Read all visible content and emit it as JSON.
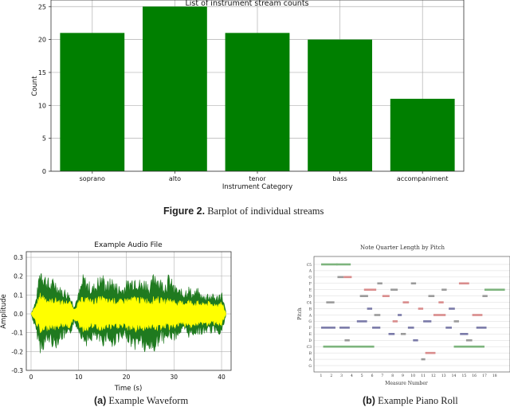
{
  "figure2_caption": {
    "label": "Figure 2.",
    "text": "Barplot of individual streams"
  },
  "caption_a": {
    "label": "(a)",
    "text": "Example Waveform"
  },
  "caption_b": {
    "label": "(b)",
    "text": "Example Piano Roll"
  },
  "colors": {
    "bar": "#007f00",
    "wave_outer": "#1f7a1f",
    "wave_inner": "#ffff00",
    "grid": "#b0b0b0"
  },
  "chart_data": [
    {
      "type": "bar",
      "title": "List of instrument stream counts",
      "xlabel": "Instrument Category",
      "ylabel": "Count",
      "categories": [
        "soprano",
        "alto",
        "tenor",
        "bass",
        "accompaniment"
      ],
      "values": [
        21,
        25,
        21,
        20,
        11
      ],
      "ylim": [
        0,
        26
      ],
      "yticks": [
        0,
        5,
        10,
        15,
        20,
        25
      ],
      "grid": true
    },
    {
      "type": "area",
      "title": "Example Audio File",
      "xlabel": "Time (s)",
      "ylabel": "Amplitude",
      "xlim": [
        -1,
        42
      ],
      "ylim": [
        -0.3,
        0.33
      ],
      "xticks": [
        0,
        10,
        20,
        30,
        40
      ],
      "yticks": [
        "0.3",
        "0.2",
        "0.1",
        "0.0",
        "-0.1",
        "-0.2",
        "-0.3"
      ],
      "grid": true,
      "series": [
        {
          "envelope_time": [
            0,
            1,
            2,
            3,
            4,
            5,
            6,
            7,
            8,
            9,
            10,
            11,
            12,
            13,
            14,
            15,
            16,
            17,
            18,
            19,
            20,
            21,
            22,
            23,
            24,
            25,
            26,
            27,
            28,
            29,
            30,
            31,
            32,
            33,
            34,
            35,
            36,
            37,
            38,
            39,
            40,
            41
          ],
          "outer_upper": [
            0.0,
            0.08,
            0.28,
            0.22,
            0.18,
            0.2,
            0.15,
            0.14,
            0.12,
            0.05,
            0.12,
            0.22,
            0.18,
            0.16,
            0.2,
            0.22,
            0.18,
            0.2,
            0.17,
            0.15,
            0.18,
            0.2,
            0.23,
            0.18,
            0.2,
            0.16,
            0.25,
            0.2,
            0.18,
            0.22,
            0.16,
            0.14,
            0.13,
            0.16,
            0.12,
            0.14,
            0.1,
            0.12,
            0.11,
            0.1,
            0.13,
            0.0
          ],
          "outer_lower": [
            0.0,
            -0.1,
            -0.22,
            -0.18,
            -0.16,
            -0.2,
            -0.15,
            -0.14,
            -0.14,
            -0.05,
            -0.1,
            -0.16,
            -0.18,
            -0.14,
            -0.16,
            -0.18,
            -0.14,
            -0.2,
            -0.15,
            -0.16,
            -0.14,
            -0.18,
            -0.2,
            -0.16,
            -0.24,
            -0.2,
            -0.22,
            -0.15,
            -0.16,
            -0.14,
            -0.15,
            -0.12,
            -0.1,
            -0.13,
            -0.12,
            -0.11,
            -0.12,
            -0.1,
            -0.11,
            -0.1,
            -0.12,
            0.0
          ],
          "inner_amplitude": [
            0.0,
            0.05,
            0.12,
            0.1,
            0.08,
            0.09,
            0.08,
            0.07,
            0.08,
            0.03,
            0.07,
            0.1,
            0.09,
            0.08,
            0.09,
            0.1,
            0.08,
            0.09,
            0.08,
            0.08,
            0.09,
            0.09,
            0.1,
            0.09,
            0.09,
            0.08,
            0.1,
            0.09,
            0.08,
            0.09,
            0.08,
            0.07,
            0.07,
            0.08,
            0.07,
            0.07,
            0.06,
            0.07,
            0.06,
            0.06,
            0.07,
            0.0
          ]
        }
      ]
    },
    {
      "type": "scatter",
      "title": "Note Quarter Length by Pitch",
      "xlabel": "Measure Number",
      "ylabel": "Pitch",
      "xticks": [
        "1",
        "2",
        "3",
        "4",
        "5",
        "6",
        "7",
        "8",
        "9",
        "10",
        "11",
        "12",
        "13",
        "14",
        "15",
        "16",
        "17",
        "18"
      ],
      "yticks": [
        "C5",
        "A",
        "G",
        "F",
        "E",
        "D",
        "C4",
        "B",
        "A",
        "G",
        "F",
        "E",
        "D",
        "C3",
        "B",
        "A",
        "G"
      ],
      "series": [
        {
          "name": "",
          "color": "#7db47d",
          "notes": [
            [
              1.0,
              0,
              1.6
            ],
            [
              2.5,
              0,
              1.4
            ],
            [
              1.2,
              13,
              5.0
            ],
            [
              14.0,
              13,
              3.0
            ],
            [
              17.0,
              4,
              2.0
            ]
          ]
        },
        {
          "name": "",
          "color": "#d98c8c",
          "notes": [
            [
              3.2,
              2,
              0.8
            ],
            [
              5.2,
              4,
              1.2
            ],
            [
              7.0,
              5,
              0.7
            ],
            [
              9.0,
              6,
              0.6
            ],
            [
              10.5,
              7,
              0.5
            ],
            [
              12.0,
              8,
              1.2
            ],
            [
              14.5,
              3,
              1.0
            ],
            [
              11.2,
              14,
              1.0
            ],
            [
              12.5,
              6,
              0.5
            ],
            [
              15.8,
              8,
              1.0
            ],
            [
              8.0,
              9,
              0.5
            ]
          ]
        },
        {
          "name": "",
          "color": "#7a7aa8",
          "notes": [
            [
              1.0,
              10,
              1.4
            ],
            [
              2.8,
              10,
              1.0
            ],
            [
              4.5,
              9,
              1.0
            ],
            [
              6.0,
              10,
              0.8
            ],
            [
              7.6,
              11,
              0.6
            ],
            [
              9.5,
              10,
              0.6
            ],
            [
              11.0,
              9,
              0.8
            ],
            [
              13.2,
              10,
              0.6
            ],
            [
              14.6,
              11,
              0.8
            ],
            [
              16.2,
              10,
              1.0
            ],
            [
              5.5,
              7,
              0.5
            ],
            [
              8.5,
              8,
              0.4
            ],
            [
              10.0,
              12,
              0.5
            ],
            [
              13.5,
              7,
              0.6
            ]
          ]
        },
        {
          "name": "",
          "color": "#9a9a9a",
          "notes": [
            [
              1.5,
              6,
              0.8
            ],
            [
              2.6,
              2,
              0.6
            ],
            [
              3.3,
              12,
              0.5
            ],
            [
              4.8,
              5,
              0.8
            ],
            [
              6.5,
              3,
              0.5
            ],
            [
              7.8,
              4,
              0.7
            ],
            [
              8.8,
              11,
              0.5
            ],
            [
              9.8,
              3,
              0.5
            ],
            [
              11.5,
              5,
              0.6
            ],
            [
              12.8,
              4,
              0.5
            ],
            [
              14.0,
              9,
              0.5
            ],
            [
              15.2,
              12,
              0.6
            ],
            [
              16.8,
              5,
              0.5
            ],
            [
              10.8,
              15,
              0.4
            ],
            [
              6.2,
              8,
              0.6
            ]
          ]
        }
      ]
    }
  ]
}
